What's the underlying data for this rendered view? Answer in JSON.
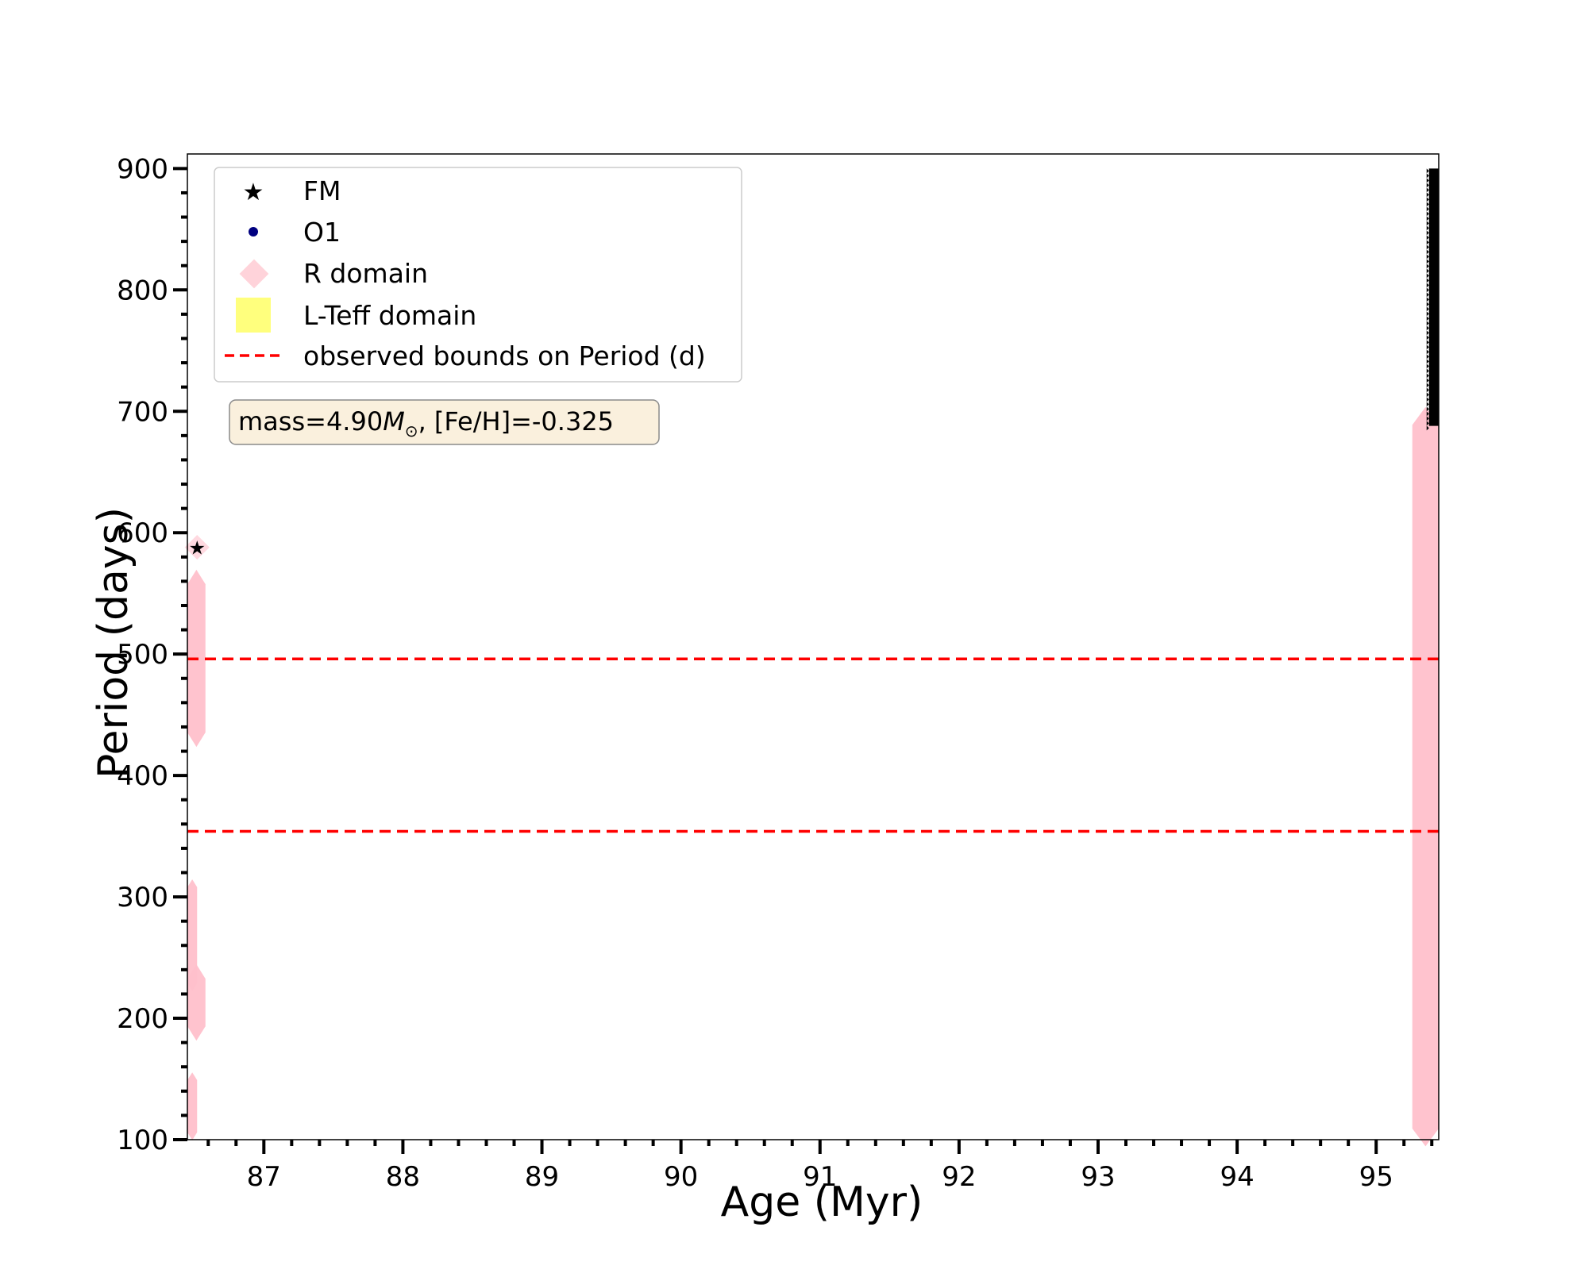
{
  "chart_data": {
    "type": "scatter",
    "xlabel": "Age (Myr)",
    "ylabel": "Period (days)",
    "xlim": [
      86.45,
      95.45
    ],
    "ylim": [
      100,
      912
    ],
    "x_ticks": [
      87,
      88,
      89,
      90,
      91,
      92,
      93,
      94,
      95
    ],
    "y_ticks": [
      100,
      200,
      300,
      400,
      500,
      600,
      700,
      800,
      900
    ],
    "x_minor_step": 0.2,
    "y_minor_step": 20,
    "grid": false,
    "legend_position": "top-left",
    "legend": [
      {
        "label": "FM",
        "marker": "star",
        "color": "#000000"
      },
      {
        "label": "O1",
        "marker": "circle",
        "color": "#000080"
      },
      {
        "label": "R domain",
        "marker": "diamond",
        "color": "#ffc0cb"
      },
      {
        "label": "L-Teff domain",
        "marker": "square",
        "color": "#ffff66"
      },
      {
        "label": "observed bounds on Period (d)",
        "marker": "dashed-line",
        "color": "#ff0000"
      }
    ],
    "annotation": {
      "prefix": "mass=4.90",
      "symbol": "M",
      "subscript": "⊙",
      "suffix": ", [Fe/H]=-0.325"
    },
    "hlines": [
      496,
      354
    ],
    "series": [
      {
        "name": "R domain",
        "color": "#ffc0cb",
        "bands": [
          {
            "x": [
              86.45,
              86.58
            ],
            "y": [
              428,
              565
            ]
          },
          {
            "x": [
              86.45,
              86.58
            ],
            "y": [
              186,
              240
            ]
          },
          {
            "x": [
              86.45,
              86.52
            ],
            "y": [
              225,
              312
            ]
          },
          {
            "x": [
              86.45,
              86.52
            ],
            "y": [
              102,
              153
            ]
          },
          {
            "x": [
              95.26,
              95.45
            ],
            "y": [
              100,
              698
            ]
          }
        ],
        "points": [
          {
            "x": 86.52,
            "y": 588
          }
        ]
      },
      {
        "name": "FM",
        "color": "#000000",
        "points": [
          {
            "x": 86.52,
            "y": 588
          }
        ],
        "bands": [
          {
            "x": [
              95.38,
              95.45
            ],
            "y": [
              688,
              900
            ]
          }
        ]
      }
    ]
  }
}
